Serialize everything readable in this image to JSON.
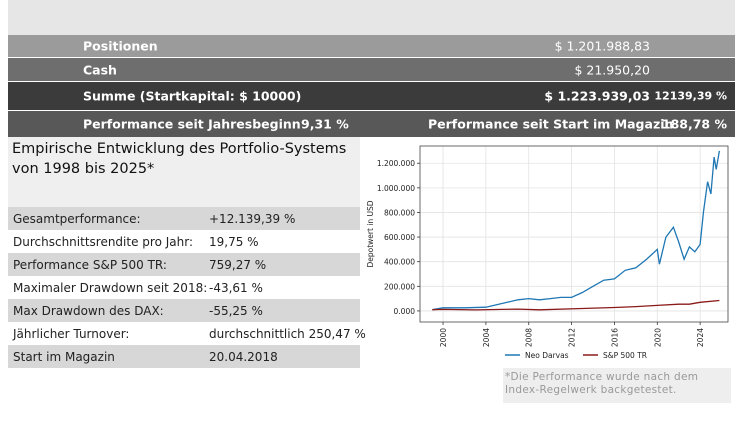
{
  "summary": {
    "rows": [
      {
        "label": "Positionen",
        "value": "$ 1.201.988,83"
      },
      {
        "label": "Cash",
        "value": "$ 21.950,20"
      },
      {
        "label": "Summe (Startkapital: $ 10000)",
        "value": "$ 1.223.939,03",
        "percent": "12139,39 %"
      }
    ],
    "performance": {
      "ytd_label": "Performance seit Jahresbeginn",
      "ytd_value": "9,31 %",
      "since_label": "Performance seit Start im Magazin",
      "since_value": "188,78 %"
    }
  },
  "stats": {
    "title": "Empirische Entwicklung des Portfolio-Systems von 1998 bis 2025*",
    "rows": [
      [
        "Gesamtperformance:",
        "+12.139,39 %"
      ],
      [
        "Durchschnittsrendite pro Jahr:",
        "19,75 %"
      ],
      [
        "Performance S&P 500 TR:",
        "759,27 %"
      ],
      [
        "Maximaler Drawdown seit 2018:",
        "-43,61 %"
      ],
      [
        "Max Drawdown des DAX:",
        "-55,25 %"
      ],
      [
        "Jährlicher Turnover:",
        "durchschnittlich 250,47 %"
      ],
      [
        "Start im Magazin",
        "20.04.2018"
      ]
    ]
  },
  "footnote": "*Die Performance wurde nach dem Index-Regelwerk backgetestet.",
  "chart_data": {
    "type": "line",
    "y_label": "Depotwert in USD",
    "grid": true,
    "legend": "bottom",
    "xlim": [
      1997.85,
      2026.6
    ],
    "xticks": [
      2000,
      2004,
      2008,
      2012,
      2016,
      2020,
      2024
    ],
    "ylim": [
      -90000,
      1340000
    ],
    "yticks": [
      {
        "value": 0,
        "label": "0.000"
      },
      {
        "value": 200000,
        "label": "200.000"
      },
      {
        "value": 400000,
        "label": "400.000"
      },
      {
        "value": 600000,
        "label": "600.000"
      },
      {
        "value": 800000,
        "label": "800.000"
      },
      {
        "value": 1000000,
        "label": "1.000.000"
      },
      {
        "value": 1200000,
        "label": "1.200.000"
      }
    ],
    "series": [
      {
        "name": "Neo Darvas",
        "color": "#1f77b4",
        "x": [
          1999,
          2000,
          2002,
          2004,
          2005,
          2006,
          2007,
          2008,
          2009,
          2010,
          2011,
          2012,
          2013,
          2014,
          2015,
          2016,
          2017,
          2018,
          2019,
          2020,
          2020.2,
          2020.8,
          2021.5,
          2022,
          2022.5,
          2023,
          2023.5,
          2024,
          2024.3,
          2024.7,
          2025,
          2025.3,
          2025.5,
          2025.8
        ],
        "values": [
          10000,
          25000,
          25000,
          30000,
          50000,
          70000,
          90000,
          100000,
          90000,
          100000,
          110000,
          110000,
          150000,
          200000,
          250000,
          260000,
          330000,
          350000,
          420000,
          500000,
          380000,
          600000,
          680000,
          560000,
          420000,
          520000,
          480000,
          540000,
          800000,
          1050000,
          950000,
          1250000,
          1150000,
          1300000
        ]
      },
      {
        "name": "S&P 500 TR",
        "color": "#8b1a1a",
        "x": [
          1999,
          2000,
          2003,
          2007,
          2009,
          2013,
          2016,
          2018,
          2020,
          2022,
          2023,
          2024,
          2025.8
        ],
        "values": [
          10000,
          12000,
          8000,
          15000,
          9000,
          20000,
          28000,
          35000,
          45000,
          55000,
          55000,
          70000,
          85000
        ]
      }
    ]
  }
}
